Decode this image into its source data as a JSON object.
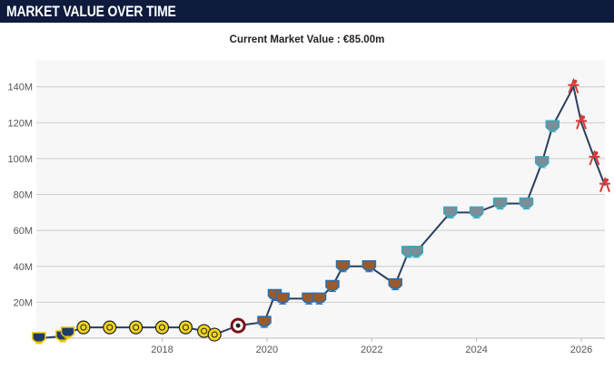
{
  "header": {
    "title": "MARKET VALUE OVER TIME"
  },
  "chart_data": {
    "type": "line",
    "title": "Current Market Value : €85.00m",
    "xlabel": "",
    "ylabel": "",
    "x_ticks": [
      "2018",
      "2020",
      "2022",
      "2024",
      "2026"
    ],
    "x_tick_values": [
      2018,
      2020,
      2022,
      2024,
      2026
    ],
    "y_ticks": [
      "20M",
      "40M",
      "60M",
      "80M",
      "100M",
      "120M",
      "140M"
    ],
    "y_tick_values": [
      20,
      40,
      60,
      80,
      100,
      120,
      140
    ],
    "xlim": [
      2015.6,
      2026.45
    ],
    "ylim": [
      0,
      155
    ],
    "grid": "horizontal",
    "colors": {
      "line": "#2a3f5f",
      "grid": "#cccccc",
      "plot_bg": "#f7f7f7",
      "header_bg": "#0e1b3d"
    },
    "series": [
      {
        "values": [
          {
            "x": 2015.65,
            "y": 0
          },
          {
            "x": 2016.1,
            "y": 1
          },
          {
            "x": 2016.2,
            "y": 3
          },
          {
            "x": 2016.5,
            "y": 6
          },
          {
            "x": 2017.0,
            "y": 6
          },
          {
            "x": 2017.5,
            "y": 6
          },
          {
            "x": 2018.0,
            "y": 6
          },
          {
            "x": 2018.45,
            "y": 6
          },
          {
            "x": 2018.8,
            "y": 4
          },
          {
            "x": 2019.0,
            "y": 2
          },
          {
            "x": 2019.45,
            "y": 7
          },
          {
            "x": 2019.95,
            "y": 9
          },
          {
            "x": 2020.15,
            "y": 24
          },
          {
            "x": 2020.3,
            "y": 22
          },
          {
            "x": 2020.8,
            "y": 22
          },
          {
            "x": 2021.0,
            "y": 22
          },
          {
            "x": 2021.25,
            "y": 29
          },
          {
            "x": 2021.45,
            "y": 40
          },
          {
            "x": 2021.95,
            "y": 40
          },
          {
            "x": 2022.45,
            "y": 30
          },
          {
            "x": 2022.7,
            "y": 48
          },
          {
            "x": 2022.85,
            "y": 48
          },
          {
            "x": 2023.5,
            "y": 70
          },
          {
            "x": 2024.0,
            "y": 70
          },
          {
            "x": 2024.45,
            "y": 75
          },
          {
            "x": 2024.95,
            "y": 75
          },
          {
            "x": 2025.25,
            "y": 98
          },
          {
            "x": 2025.45,
            "y": 118
          },
          {
            "x": 2025.85,
            "y": 140
          },
          {
            "x": 2026.0,
            "y": 120
          },
          {
            "x": 2026.25,
            "y": 100
          },
          {
            "x": 2026.45,
            "y": 85
          }
        ]
      }
    ]
  }
}
